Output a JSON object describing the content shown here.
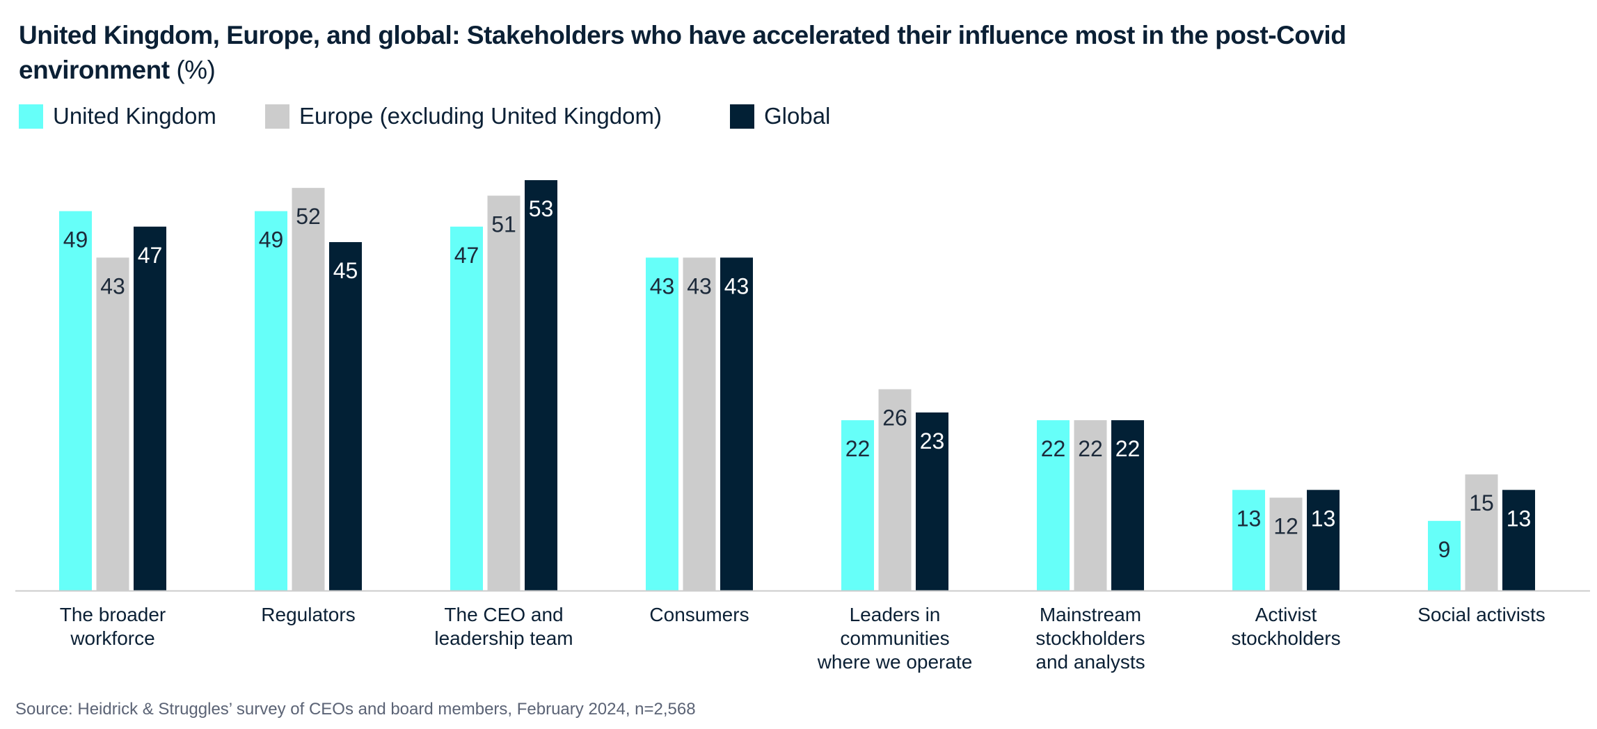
{
  "chart_data": {
    "type": "bar",
    "title": "United Kingdom, Europe, and global: Stakeholders who have accelerated their influence most in the post-Covid environment",
    "title_unit": "(%)",
    "categories": [
      [
        "The broader",
        "workforce"
      ],
      [
        "Regulators"
      ],
      [
        "The CEO and",
        "leadership team"
      ],
      [
        "Consumers"
      ],
      [
        "Leaders in",
        "communities",
        "where we operate"
      ],
      [
        "Mainstream",
        "stockholders",
        "and analysts"
      ],
      [
        "Activist",
        "stockholders"
      ],
      [
        "Social activists"
      ]
    ],
    "series": [
      {
        "name": "United Kingdom",
        "color": "#66fff9",
        "label_color": "#1d2a3a",
        "values": [
          49,
          49,
          47,
          43,
          22,
          22,
          13,
          9
        ]
      },
      {
        "name": "Europe (excluding United Kingdom)",
        "color": "#cccccc",
        "label_color": "#1d2a3a",
        "values": [
          43,
          52,
          51,
          43,
          26,
          22,
          12,
          15
        ]
      },
      {
        "name": "Global",
        "color": "#022035",
        "label_color": "#ffffff",
        "values": [
          47,
          45,
          53,
          43,
          23,
          22,
          13,
          13
        ]
      }
    ],
    "xlabel": "",
    "ylabel": "",
    "ylim": [
      0,
      53
    ],
    "grid": false,
    "legend_position": "top-left",
    "source": "Source: Heidrick & Struggles’ survey of CEOs and board members, February 2024, n=2,568"
  }
}
